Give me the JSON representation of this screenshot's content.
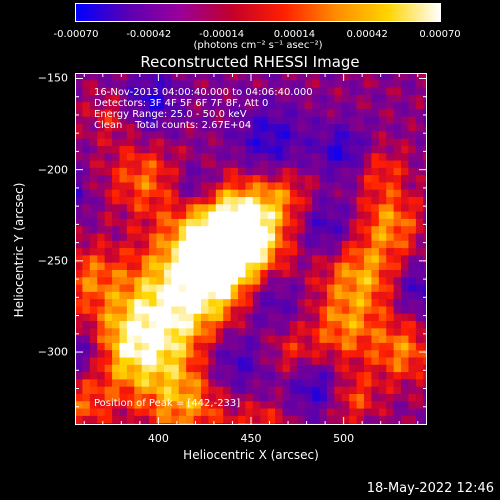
{
  "colorbar": {
    "tick_labels": [
      "-0.00070",
      "-0.00042",
      "-0.00014",
      "0.00014",
      "0.00042",
      "0.00070"
    ],
    "units_label": "(photons cm⁻² s⁻¹ asec⁻²)",
    "range": [
      -0.0007,
      0.0007
    ],
    "colors": [
      "#0000ff",
      "#5b00b3",
      "#9a009a",
      "#c2002a",
      "#ff2000",
      "#ff8c00",
      "#ffd400",
      "#ffffff"
    ]
  },
  "chart_data": {
    "type": "heatmap",
    "title": "Reconstructed RHESSI Image",
    "xlabel": "Heliocentric X (arcsec)",
    "ylabel": "Heliocentric Y (arcsec)",
    "xlim": [
      355,
      545
    ],
    "ylim": [
      -340,
      -147
    ],
    "x_ticks": [
      400,
      450,
      500
    ],
    "y_ticks": [
      -150,
      -200,
      -250,
      -300
    ],
    "peak": {
      "x": 442,
      "y": -233
    },
    "annotations": [
      "16-Nov-2013 04:00:40.000 to 04:06:40.000",
      "Detectors: 3F 4F 5F 6F 7F 8F, Att 0",
      "Energy Range: 25.0 - 50.0 keV",
      "Clean    Total counts: 2.67E+04"
    ],
    "peak_label": "Position of Peak = [442,-233]"
  },
  "footer": {
    "timestamp": "18-May-2022 12:46"
  }
}
